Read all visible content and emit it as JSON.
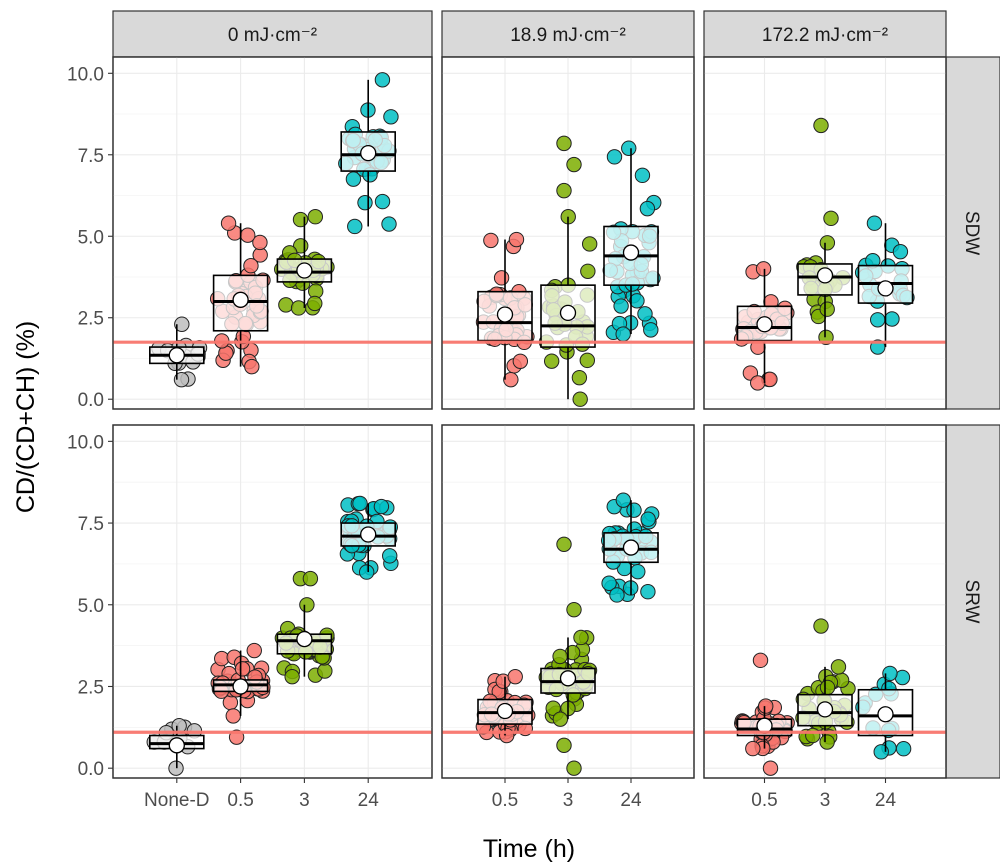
{
  "chart_data": {
    "type": "box-jitter",
    "xlabel": "Time (h)",
    "ylabel": "CD/(CD+CH) (%)",
    "ylim": [
      -0.3,
      10.5
    ],
    "y_ticks": [
      0.0,
      2.5,
      5.0,
      7.5,
      10.0
    ],
    "y_tick_labels": [
      "0.0",
      "2.5",
      "5.0",
      "7.5",
      "10.0"
    ],
    "colors": {
      "None-D": "#bdbdbd",
      "0.5": "#f8766d",
      "3": "#7cae00",
      "24": "#00bfc4"
    },
    "col_labels": [
      "0 mJ·cm⁻²",
      "18.9 mJ·cm⁻²",
      "172.2 mJ·cm⁻²"
    ],
    "row_labels": [
      "SDW",
      "SRW"
    ],
    "panels": [
      {
        "col": 0,
        "row": 0,
        "categories": [
          "None-D",
          "0.5",
          "3",
          "24"
        ],
        "ref_line": 1.75,
        "groups": [
          {
            "cat": "None-D",
            "q1": 1.1,
            "median": 1.35,
            "q3": 1.6,
            "lo": 0.6,
            "hi": 2.3,
            "mean": 1.35,
            "n": 14
          },
          {
            "cat": "0.5",
            "q1": 2.1,
            "median": 3.0,
            "q3": 3.8,
            "lo": 1.0,
            "hi": 5.4,
            "mean": 3.05,
            "n": 40
          },
          {
            "cat": "3",
            "q1": 3.6,
            "median": 3.9,
            "q3": 4.3,
            "lo": 2.8,
            "hi": 5.6,
            "mean": 3.95,
            "n": 35
          },
          {
            "cat": "24",
            "q1": 7.0,
            "median": 7.5,
            "q3": 8.2,
            "lo": 5.3,
            "hi": 9.8,
            "mean": 7.55,
            "n": 35
          }
        ]
      },
      {
        "col": 1,
        "row": 0,
        "categories": [
          "0.5",
          "3",
          "24"
        ],
        "ref_line": 1.75,
        "groups": [
          {
            "cat": "0.5",
            "q1": 1.8,
            "median": 2.35,
            "q3": 3.3,
            "lo": 0.6,
            "hi": 4.9,
            "mean": 2.6,
            "n": 35
          },
          {
            "cat": "3",
            "q1": 1.6,
            "median": 2.25,
            "q3": 3.5,
            "lo": 0.0,
            "hi": 5.6,
            "mean": 2.65,
            "n": 30
          },
          {
            "cat": "24",
            "q1": 3.5,
            "median": 4.4,
            "q3": 5.3,
            "lo": 2.0,
            "hi": 7.7,
            "mean": 4.5,
            "n": 40
          }
        ]
      },
      {
        "col": 2,
        "row": 0,
        "categories": [
          "0.5",
          "3",
          "24"
        ],
        "ref_line": 1.75,
        "groups": [
          {
            "cat": "0.5",
            "q1": 1.8,
            "median": 2.2,
            "q3": 2.85,
            "lo": 0.5,
            "hi": 4.0,
            "mean": 2.3,
            "n": 32
          },
          {
            "cat": "3",
            "q1": 3.2,
            "median": 3.75,
            "q3": 4.15,
            "lo": 1.9,
            "hi": 4.8,
            "mean": 3.8,
            "n": 20
          },
          {
            "cat": "24",
            "q1": 2.95,
            "median": 3.55,
            "q3": 4.1,
            "lo": 1.6,
            "hi": 5.4,
            "mean": 3.4,
            "n": 20
          }
        ]
      },
      {
        "col": 0,
        "row": 1,
        "categories": [
          "None-D",
          "0.5",
          "3",
          "24"
        ],
        "ref_line": 1.1,
        "groups": [
          {
            "cat": "None-D",
            "q1": 0.6,
            "median": 0.75,
            "q3": 1.0,
            "lo": 0.0,
            "hi": 1.3,
            "mean": 0.7,
            "n": 9
          },
          {
            "cat": "0.5",
            "q1": 2.35,
            "median": 2.55,
            "q3": 2.7,
            "lo": 1.6,
            "hi": 3.6,
            "mean": 2.5,
            "n": 40
          },
          {
            "cat": "3",
            "q1": 3.5,
            "median": 3.9,
            "q3": 4.1,
            "lo": 2.8,
            "hi": 5.0,
            "mean": 3.95,
            "n": 40
          },
          {
            "cat": "24",
            "q1": 6.8,
            "median": 7.1,
            "q3": 7.5,
            "lo": 6.0,
            "hi": 8.1,
            "mean": 7.15,
            "n": 40
          }
        ]
      },
      {
        "col": 1,
        "row": 1,
        "categories": [
          "0.5",
          "3",
          "24"
        ],
        "ref_line": 1.1,
        "groups": [
          {
            "cat": "0.5",
            "q1": 1.35,
            "median": 1.7,
            "q3": 2.1,
            "lo": 1.0,
            "hi": 2.8,
            "mean": 1.75,
            "n": 40
          },
          {
            "cat": "3",
            "q1": 2.3,
            "median": 2.65,
            "q3": 3.05,
            "lo": 1.5,
            "hi": 4.0,
            "mean": 2.75,
            "n": 40
          },
          {
            "cat": "24",
            "q1": 6.3,
            "median": 6.7,
            "q3": 7.2,
            "lo": 5.3,
            "hi": 8.2,
            "mean": 6.75,
            "n": 40
          }
        ]
      },
      {
        "col": 2,
        "row": 1,
        "categories": [
          "0.5",
          "3",
          "24"
        ],
        "ref_line": 1.1,
        "groups": [
          {
            "cat": "0.5",
            "q1": 1.0,
            "median": 1.2,
            "q3": 1.5,
            "lo": 0.6,
            "hi": 1.9,
            "mean": 1.3,
            "n": 35
          },
          {
            "cat": "3",
            "q1": 1.3,
            "median": 1.7,
            "q3": 2.25,
            "lo": 0.8,
            "hi": 3.1,
            "mean": 1.8,
            "n": 30
          },
          {
            "cat": "24",
            "q1": 1.0,
            "median": 1.6,
            "q3": 2.4,
            "lo": 0.5,
            "hi": 2.9,
            "mean": 1.65,
            "n": 12
          }
        ]
      }
    ],
    "outliers": [
      {
        "col": 1,
        "row": 0,
        "cat": "3",
        "values": [
          7.85,
          7.2,
          6.4
        ]
      },
      {
        "col": 2,
        "row": 0,
        "cat": "3",
        "values": [
          8.4,
          5.55
        ]
      },
      {
        "col": 0,
        "row": 1,
        "cat": "0.5",
        "values": [
          0.95
        ]
      },
      {
        "col": 0,
        "row": 1,
        "cat": "3",
        "values": [
          5.8,
          5.8
        ]
      },
      {
        "col": 1,
        "row": 1,
        "cat": "3",
        "values": [
          6.85,
          4.85,
          0.7,
          0.0
        ]
      },
      {
        "col": 2,
        "row": 1,
        "cat": "0.5",
        "values": [
          3.3,
          0.0
        ]
      },
      {
        "col": 2,
        "row": 1,
        "cat": "3",
        "values": [
          4.35
        ]
      }
    ]
  }
}
